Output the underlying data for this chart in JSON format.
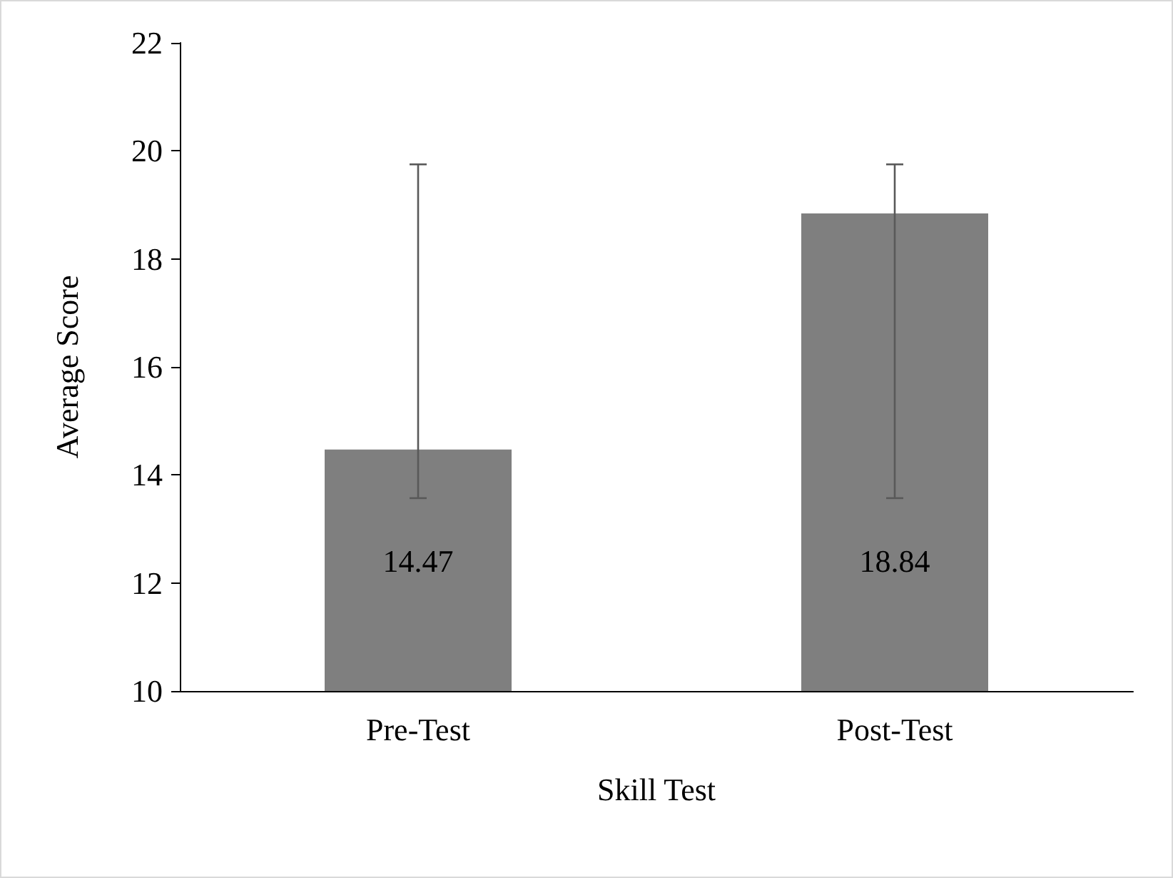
{
  "chart_data": {
    "type": "bar",
    "xlabel": "Skill Test",
    "ylabel": "Average Score",
    "categories": [
      "Pre-Test",
      "Post-Test"
    ],
    "values": [
      14.47,
      18.84
    ],
    "color": "#7f7f7f",
    "errors": [
      [
        13.57,
        19.75
      ],
      [
        13.57,
        19.75
      ]
    ],
    "data_labels": true,
    "ylim": [
      10,
      22
    ],
    "yticks": [
      10,
      12,
      14,
      16,
      18,
      20,
      22
    ],
    "grid": false
  }
}
